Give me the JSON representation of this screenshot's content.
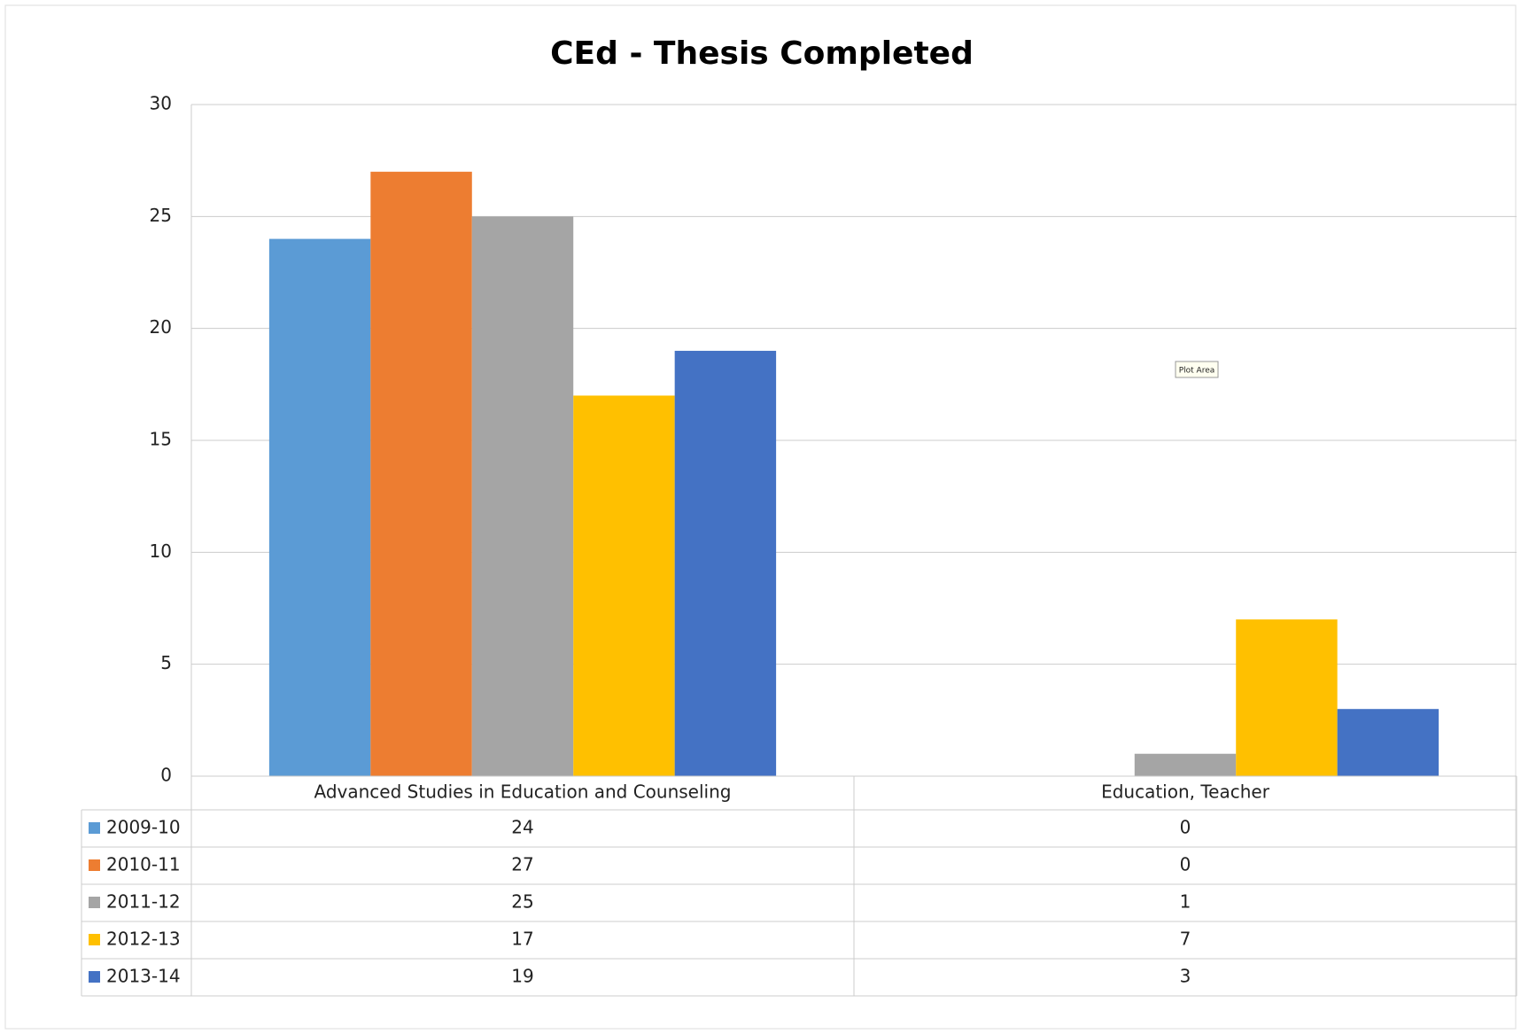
{
  "chart_data": {
    "type": "bar",
    "title": "CEd - Thesis Completed",
    "categories": [
      "Advanced Studies in Education and Counseling",
      "Education, Teacher"
    ],
    "series": [
      {
        "name": "2009-10",
        "color": "#5b9bd5",
        "values": [
          24,
          0
        ]
      },
      {
        "name": "2010-11",
        "color": "#ed7d31",
        "values": [
          27,
          0
        ]
      },
      {
        "name": "2011-12",
        "color": "#a5a5a5",
        "values": [
          25,
          1
        ]
      },
      {
        "name": "2012-13",
        "color": "#ffc000",
        "values": [
          17,
          7
        ]
      },
      {
        "name": "2013-14",
        "color": "#4472c4",
        "values": [
          19,
          3
        ]
      }
    ],
    "ylim": [
      0,
      30
    ],
    "yticks": [
      0,
      5,
      10,
      15,
      20,
      25,
      30
    ],
    "grid": true,
    "annotation": "Plot Area"
  }
}
